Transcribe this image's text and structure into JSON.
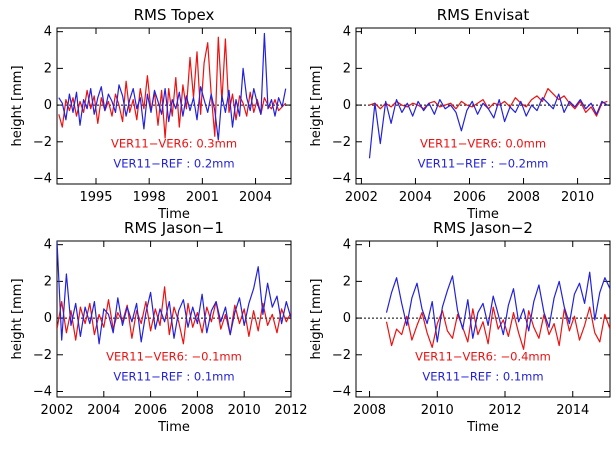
{
  "colors": {
    "red": "#ee1111",
    "blue": "#2222dd",
    "frame": "#000000"
  },
  "chart_data": [
    {
      "type": "line",
      "title": "RMS Topex",
      "xlabel": "Time",
      "ylabel": "height [mm]",
      "xlim": [
        1992.8,
        2006.0
      ],
      "ylim": [
        -4.3,
        4.2
      ],
      "xticks": [
        1995,
        1998,
        2001,
        2004
      ],
      "xtick_labels": [
        "1995",
        "1998",
        "2001",
        "2004"
      ],
      "yticks": [
        -4,
        -2,
        0,
        2,
        4
      ],
      "ytick_labels": [
        "−4",
        "−2",
        "0",
        "2",
        "4"
      ],
      "annotations": [
        {
          "text": "VER11−VER6:  0.3mm",
          "color": "red"
        },
        {
          "text": "VER11−REF :  0.2mm",
          "color": "blue"
        }
      ],
      "series": [
        {
          "color": "red",
          "x": [
            1992.9,
            1993.1,
            1993.3,
            1993.5,
            1993.7,
            1993.9,
            1994.1,
            1994.3,
            1994.5,
            1994.7,
            1994.9,
            1995.1,
            1995.3,
            1995.5,
            1995.7,
            1995.9,
            1996.1,
            1996.3,
            1996.5,
            1996.7,
            1996.9,
            1997.1,
            1997.3,
            1997.5,
            1997.7,
            1997.9,
            1998.1,
            1998.3,
            1998.5,
            1998.7,
            1998.9,
            1999.1,
            1999.3,
            1999.5,
            1999.7,
            1999.9,
            2000.1,
            2000.3,
            2000.5,
            2000.7,
            2000.9,
            2001.1,
            2001.3,
            2001.5,
            2001.7,
            2001.9,
            2002.1,
            2002.3,
            2002.5,
            2002.7,
            2002.9,
            2003.1,
            2003.3,
            2003.5,
            2003.7,
            2003.9,
            2004.1,
            2004.3,
            2004.5,
            2004.7,
            2004.9,
            2005.1,
            2005.3,
            2005.5,
            2005.7
          ],
          "y": [
            -0.5,
            -1.2,
            0.3,
            -0.3,
            0.4,
            -0.6,
            0.2,
            -0.4,
            0.8,
            -0.2,
            0.5,
            -1.0,
            0.4,
            -0.3,
            0.2,
            -0.6,
            0.6,
            0.0,
            -0.9,
            1.3,
            -0.4,
            0.3,
            -0.8,
            0.9,
            -0.2,
            1.6,
            -0.3,
            0.7,
            -1.1,
            0.8,
            -1.8,
            0.9,
            -0.6,
            1.5,
            -1.2,
            1.1,
            -0.2,
            2.6,
            0.4,
            2.9,
            -0.5,
            2.3,
            3.4,
            0.6,
            -1.7,
            3.7,
            0.2,
            3.6,
            -0.4,
            0.6,
            -0.8,
            0.5,
            0.1,
            -0.6,
            0.7,
            -0.4,
            0.3,
            -0.5,
            0.4,
            0.0,
            -0.2,
            0.3,
            -0.3,
            -0.1,
            0.1
          ]
        },
        {
          "color": "blue",
          "x": [
            1992.9,
            1993.1,
            1993.3,
            1993.5,
            1993.7,
            1993.9,
            1994.1,
            1994.3,
            1994.5,
            1994.7,
            1994.9,
            1995.1,
            1995.3,
            1995.5,
            1995.7,
            1995.9,
            1996.1,
            1996.3,
            1996.5,
            1996.7,
            1996.9,
            1997.1,
            1997.3,
            1997.5,
            1997.7,
            1997.9,
            1998.1,
            1998.3,
            1998.5,
            1998.7,
            1998.9,
            1999.1,
            1999.3,
            1999.5,
            1999.7,
            1999.9,
            2000.1,
            2000.3,
            2000.5,
            2000.7,
            2000.9,
            2001.1,
            2001.3,
            2001.5,
            2001.7,
            2001.9,
            2002.1,
            2002.3,
            2002.5,
            2002.7,
            2002.9,
            2003.1,
            2003.3,
            2003.5,
            2003.7,
            2003.9,
            2004.1,
            2004.3,
            2004.5,
            2004.7,
            2004.9,
            2005.1,
            2005.3,
            2005.5,
            2005.7
          ],
          "y": [
            0.4,
            0.1,
            -0.8,
            0.6,
            -0.4,
            0.7,
            -1.1,
            0.3,
            -0.2,
            0.9,
            -0.5,
            0.4,
            1.0,
            -0.3,
            0.6,
            0.2,
            -0.4,
            1.1,
            0.5,
            -0.6,
            0.3,
            0.9,
            -0.2,
            0.4,
            -1.3,
            0.6,
            -0.4,
            0.8,
            0.2,
            -0.5,
            0.9,
            -0.9,
            0.3,
            -0.2,
            0.7,
            -0.6,
            0.5,
            -0.3,
            0.4,
            -0.8,
            1.0,
            0.3,
            -0.4,
            0.6,
            -0.3,
            -1.9,
            0.5,
            -0.4,
            0.8,
            -1.2,
            0.3,
            -0.6,
            2.0,
            0.4,
            -0.3,
            0.9,
            0.1,
            -0.5,
            3.9,
            -0.2,
            0.3,
            -0.6,
            0.4,
            -0.1,
            0.9
          ]
        }
      ]
    },
    {
      "type": "line",
      "title": "RMS Envisat",
      "xlabel": "Time",
      "ylabel": "height [mm]",
      "xlim": [
        2001.8,
        2011.2
      ],
      "ylim": [
        -4.3,
        4.2
      ],
      "xticks": [
        2002,
        2004,
        2006,
        2008,
        2010
      ],
      "xtick_labels": [
        "2002",
        "2004",
        "2006",
        "2008",
        "2010"
      ],
      "yticks": [
        -4,
        -2,
        0,
        2,
        4
      ],
      "ytick_labels": [
        "−4",
        "−2",
        "0",
        "2",
        "4"
      ],
      "annotations": [
        {
          "text": "VER11−VER6:  0.0mm",
          "color": "red"
        },
        {
          "text": "VER11−REF : −0.2mm",
          "color": "blue"
        }
      ],
      "series": [
        {
          "color": "red",
          "x": [
            2002.3,
            2002.5,
            2002.7,
            2002.9,
            2003.1,
            2003.3,
            2003.5,
            2003.7,
            2003.9,
            2004.1,
            2004.3,
            2004.5,
            2004.7,
            2004.9,
            2005.1,
            2005.3,
            2005.5,
            2005.7,
            2005.9,
            2006.1,
            2006.3,
            2006.5,
            2006.7,
            2006.9,
            2007.1,
            2007.3,
            2007.5,
            2007.7,
            2007.9,
            2008.1,
            2008.3,
            2008.5,
            2008.7,
            2008.9,
            2009.1,
            2009.3,
            2009.5,
            2009.7,
            2009.9,
            2010.1,
            2010.3,
            2010.5,
            2010.7,
            2010.9,
            2011.1
          ],
          "y": [
            0.0,
            0.1,
            -0.2,
            0.1,
            -0.1,
            0.2,
            0.0,
            -0.1,
            0.1,
            0.0,
            -0.2,
            0.1,
            0.2,
            -0.1,
            0.0,
            0.1,
            -0.2,
            0.2,
            0.0,
            -0.1,
            0.1,
            0.3,
            -0.2,
            0.1,
            0.0,
            0.2,
            -0.1,
            0.4,
            0.1,
            -0.1,
            0.3,
            0.5,
            0.2,
            0.9,
            0.6,
            0.3,
            0.5,
            0.1,
            -0.2,
            0.2,
            -0.4,
            -0.1,
            -0.6,
            0.1,
            0.2
          ]
        },
        {
          "color": "blue",
          "x": [
            2002.3,
            2002.5,
            2002.7,
            2002.9,
            2003.1,
            2003.3,
            2003.5,
            2003.7,
            2003.9,
            2004.1,
            2004.3,
            2004.5,
            2004.7,
            2004.9,
            2005.1,
            2005.3,
            2005.5,
            2005.7,
            2005.9,
            2006.1,
            2006.3,
            2006.5,
            2006.7,
            2006.9,
            2007.1,
            2007.3,
            2007.5,
            2007.7,
            2007.9,
            2008.1,
            2008.3,
            2008.5,
            2008.7,
            2008.9,
            2009.1,
            2009.3,
            2009.5,
            2009.7,
            2009.9,
            2010.1,
            2010.3,
            2010.5,
            2010.7,
            2010.9,
            2011.1
          ],
          "y": [
            -2.9,
            0.1,
            -2.1,
            0.2,
            -1.0,
            0.3,
            -0.4,
            0.1,
            -0.6,
            0.2,
            -0.3,
            0.1,
            -0.5,
            0.3,
            -0.2,
            0.0,
            -0.4,
            -1.4,
            -0.3,
            0.2,
            -0.5,
            0.1,
            -0.2,
            -0.7,
            0.3,
            -0.9,
            -0.1,
            -0.4,
            0.2,
            -0.6,
            0.0,
            -0.3,
            0.4,
            0.1,
            -0.2,
            0.6,
            -0.4,
            0.2,
            -0.1,
            0.3,
            -0.2,
            0.1,
            -0.5,
            0.2,
            0.0
          ]
        }
      ]
    },
    {
      "type": "line",
      "title": "RMS Jason−1",
      "xlabel": "Time",
      "ylabel": "height [mm]",
      "xlim": [
        2002.0,
        2012.0
      ],
      "ylim": [
        -4.3,
        4.2
      ],
      "xticks": [
        2002,
        2004,
        2006,
        2008,
        2010,
        2012
      ],
      "xtick_labels": [
        "2002",
        "2004",
        "2006",
        "2008",
        "2010",
        "2012"
      ],
      "yticks": [
        -4,
        -2,
        0,
        2,
        4
      ],
      "ytick_labels": [
        "−4",
        "−2",
        "0",
        "2",
        "4"
      ],
      "annotations": [
        {
          "text": "VER11−VER6: −0.1mm",
          "color": "red"
        },
        {
          "text": "VER11−REF :  0.1mm",
          "color": "blue"
        }
      ],
      "series": [
        {
          "color": "red",
          "x": [
            2002.0,
            2002.2,
            2002.4,
            2002.6,
            2002.8,
            2003.0,
            2003.2,
            2003.4,
            2003.6,
            2003.8,
            2004.0,
            2004.2,
            2004.4,
            2004.6,
            2004.8,
            2005.0,
            2005.2,
            2005.4,
            2005.6,
            2005.8,
            2006.0,
            2006.2,
            2006.4,
            2006.6,
            2006.8,
            2007.0,
            2007.2,
            2007.4,
            2007.6,
            2007.8,
            2008.0,
            2008.2,
            2008.4,
            2008.6,
            2008.8,
            2009.0,
            2009.2,
            2009.4,
            2009.6,
            2009.8,
            2010.0,
            2010.2,
            2010.4,
            2010.6,
            2010.8,
            2011.0,
            2011.2,
            2011.4,
            2011.6,
            2011.8,
            2012.0
          ],
          "y": [
            -0.6,
            0.9,
            -0.8,
            0.4,
            -1.2,
            0.6,
            -0.3,
            0.8,
            -0.9,
            0.2,
            -0.5,
            1.0,
            -0.6,
            0.3,
            -0.2,
            0.7,
            -1.1,
            0.4,
            -0.3,
            0.9,
            -0.7,
            0.5,
            -0.4,
            1.7,
            -0.9,
            0.6,
            -0.2,
            -1.4,
            0.8,
            -0.5,
            0.3,
            -0.8,
            0.6,
            -0.2,
            0.9,
            -0.6,
            0.2,
            -0.9,
            0.7,
            -0.3,
            0.5,
            -1.0,
            0.4,
            -0.7,
            0.8,
            -0.4,
            0.2,
            -0.8,
            0.5,
            -0.2,
            0.3
          ]
        },
        {
          "color": "blue",
          "x": [
            2002.0,
            2002.2,
            2002.4,
            2002.6,
            2002.8,
            2003.0,
            2003.2,
            2003.4,
            2003.6,
            2003.8,
            2004.0,
            2004.2,
            2004.4,
            2004.6,
            2004.8,
            2005.0,
            2005.2,
            2005.4,
            2005.6,
            2005.8,
            2006.0,
            2006.2,
            2006.4,
            2006.6,
            2006.8,
            2007.0,
            2007.2,
            2007.4,
            2007.6,
            2007.8,
            2008.0,
            2008.2,
            2008.4,
            2008.6,
            2008.8,
            2009.0,
            2009.2,
            2009.4,
            2009.6,
            2009.8,
            2010.0,
            2010.2,
            2010.4,
            2010.6,
            2010.8,
            2011.0,
            2011.2,
            2011.4,
            2011.6,
            2011.8,
            2012.0
          ],
          "y": [
            4.2,
            -1.2,
            2.4,
            -0.4,
            0.8,
            -1.0,
            0.6,
            -0.3,
            0.9,
            -1.4,
            0.5,
            0.2,
            -0.8,
            1.1,
            -0.4,
            0.6,
            -0.2,
            0.8,
            -1.3,
            0.3,
            1.4,
            -0.6,
            0.5,
            -0.2,
            0.9,
            -1.1,
            0.4,
            1.0,
            -0.5,
            0.6,
            -0.3,
            1.3,
            -0.8,
            0.4,
            0.9,
            -0.2,
            0.6,
            -0.9,
            0.3,
            1.1,
            -0.4,
            0.8,
            1.6,
            2.8,
            0.2,
            1.9,
            0.6,
            1.2,
            -0.3,
            0.9,
            0.0
          ]
        }
      ]
    },
    {
      "type": "line",
      "title": "RMS Jason−2",
      "xlabel": "Time",
      "ylabel": "height [mm]",
      "xlim": [
        2007.6,
        2015.1
      ],
      "ylim": [
        -4.3,
        4.2
      ],
      "xticks": [
        2008,
        2010,
        2012,
        2014
      ],
      "xtick_labels": [
        "2008",
        "2010",
        "2012",
        "2014"
      ],
      "yticks": [
        -4,
        -2,
        0,
        2,
        4
      ],
      "ytick_labels": [
        "−4",
        "−2",
        "0",
        "2",
        "4"
      ],
      "annotations": [
        {
          "text": "VER11−VER6: −0.4mm",
          "color": "red"
        },
        {
          "text": "VER11−REF :  0.1mm",
          "color": "blue"
        }
      ],
      "series": [
        {
          "color": "red",
          "x": [
            2008.5,
            2008.65,
            2008.8,
            2008.95,
            2009.1,
            2009.25,
            2009.4,
            2009.55,
            2009.7,
            2009.85,
            2010.0,
            2010.15,
            2010.3,
            2010.45,
            2010.6,
            2010.75,
            2010.9,
            2011.05,
            2011.2,
            2011.35,
            2011.5,
            2011.65,
            2011.8,
            2011.95,
            2012.1,
            2012.25,
            2012.4,
            2012.55,
            2012.7,
            2012.85,
            2013.0,
            2013.15,
            2013.3,
            2013.45,
            2013.6,
            2013.75,
            2013.9,
            2014.05,
            2014.2,
            2014.35,
            2014.5,
            2014.65,
            2014.8,
            2014.95,
            2015.1
          ],
          "y": [
            -0.2,
            -1.5,
            -0.6,
            -0.9,
            0.1,
            -1.2,
            -0.4,
            0.3,
            -0.8,
            -1.6,
            -0.3,
            0.4,
            -0.7,
            -1.1,
            0.2,
            -0.5,
            -1.3,
            0.5,
            -0.9,
            -0.2,
            -1.4,
            0.6,
            -0.6,
            -0.1,
            -1.0,
            0.3,
            -0.8,
            -1.7,
            0.4,
            -0.5,
            -1.1,
            0.2,
            -0.9,
            -0.3,
            -1.5,
            0.5,
            -0.7,
            0.1,
            -1.2,
            -0.4,
            0.6,
            -0.8,
            -1.3,
            0.2,
            -0.6
          ]
        },
        {
          "color": "blue",
          "x": [
            2008.5,
            2008.65,
            2008.8,
            2008.95,
            2009.1,
            2009.25,
            2009.4,
            2009.55,
            2009.7,
            2009.85,
            2010.0,
            2010.15,
            2010.3,
            2010.45,
            2010.6,
            2010.75,
            2010.9,
            2011.05,
            2011.2,
            2011.35,
            2011.5,
            2011.65,
            2011.8,
            2011.95,
            2012.1,
            2012.25,
            2012.4,
            2012.55,
            2012.7,
            2012.85,
            2013.0,
            2013.15,
            2013.3,
            2013.45,
            2013.6,
            2013.75,
            2013.9,
            2014.05,
            2014.2,
            2014.35,
            2014.5,
            2014.65,
            2014.8,
            2014.95,
            2015.1
          ],
          "y": [
            0.3,
            1.4,
            2.2,
            0.8,
            -0.4,
            1.1,
            1.9,
            0.5,
            -0.3,
            0.9,
            -1.3,
            0.6,
            1.5,
            2.3,
            0.4,
            -0.6,
            1.0,
            -1.1,
            0.3,
            0.8,
            -0.4,
            1.2,
            0.2,
            -0.9,
            0.7,
            1.6,
            -0.2,
            0.5,
            -0.7,
            0.9,
            1.8,
            0.3,
            -0.5,
            1.1,
            2.0,
            0.6,
            -0.3,
            1.3,
            1.9,
            0.8,
            2.5,
            -0.1,
            1.4,
            2.2,
            1.6
          ]
        }
      ]
    }
  ]
}
